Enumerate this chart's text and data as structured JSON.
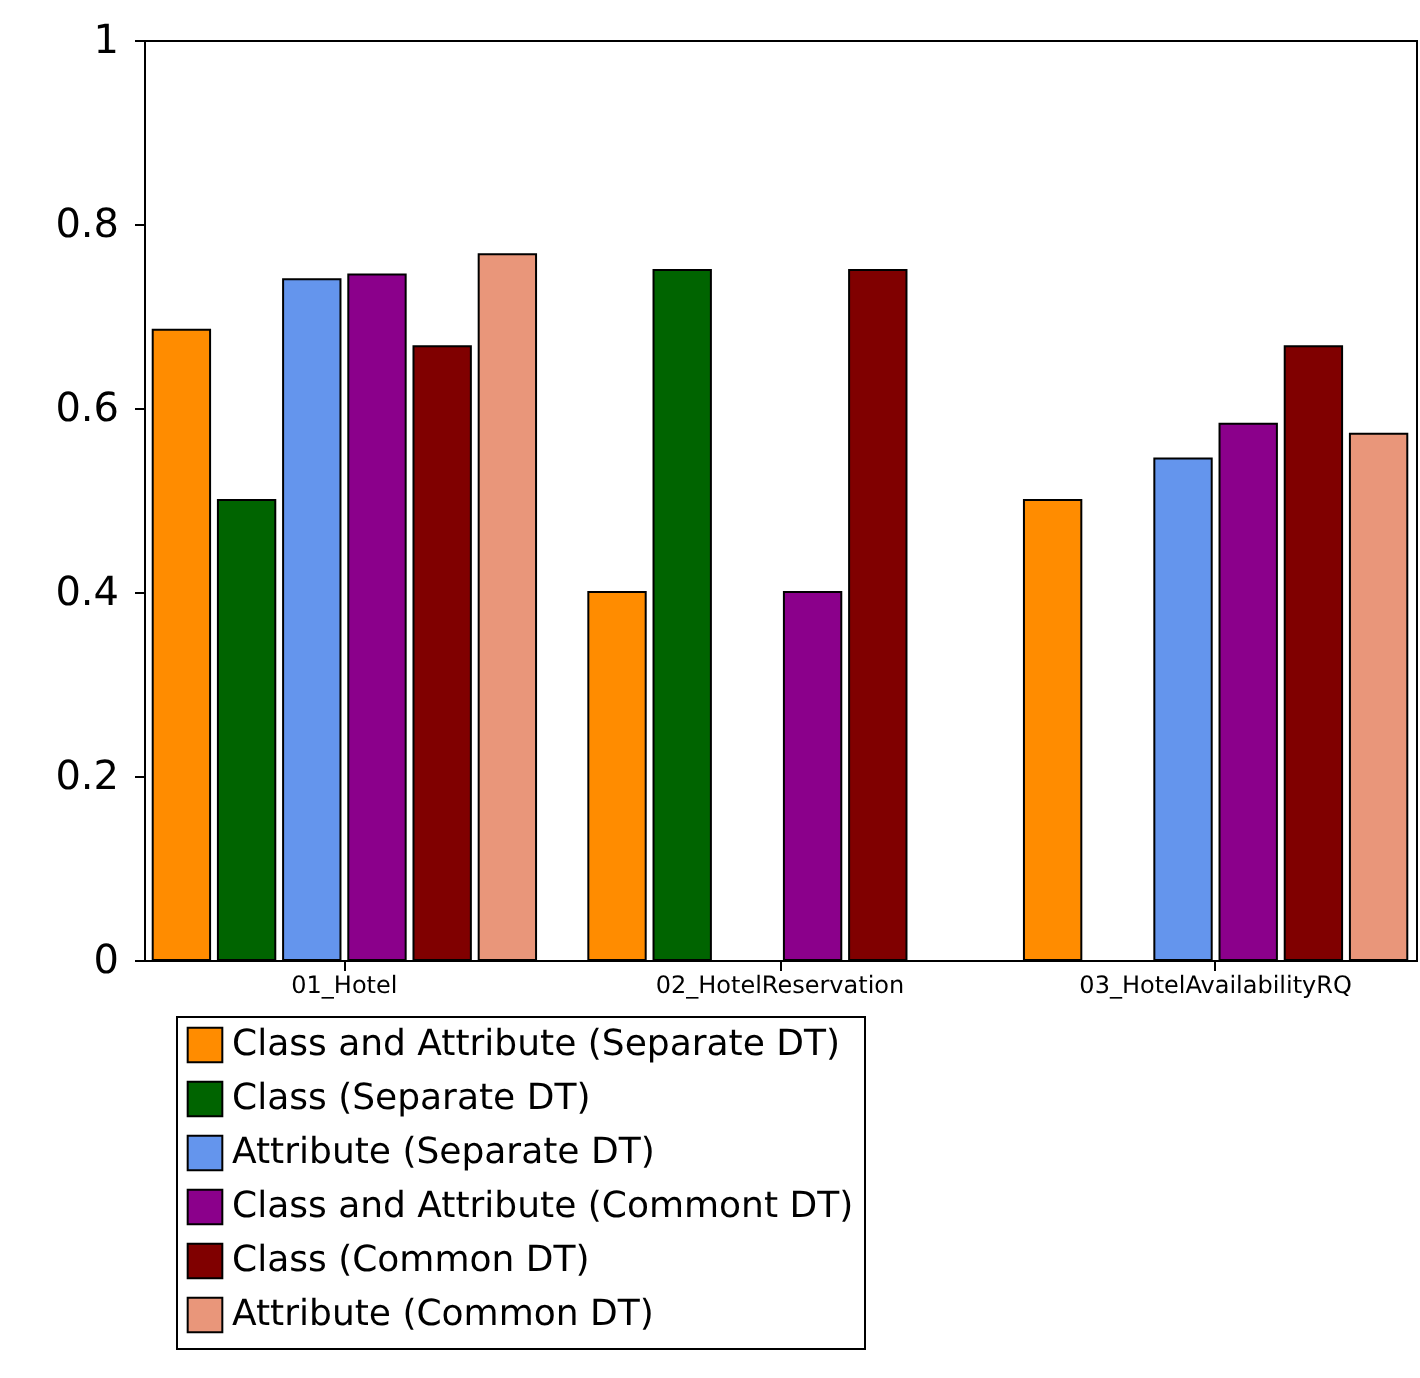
{
  "chart_data": {
    "type": "bar",
    "categories": [
      "01_Hotel",
      "02_HotelReservation",
      "03_HotelAvailabilityRQ"
    ],
    "series": [
      {
        "name": "Class and Attribute (Separate DT)",
        "color": "#ff8c00",
        "values": [
          0.685,
          0.4,
          0.5
        ]
      },
      {
        "name": "Class (Separate DT)",
        "color": "#006400",
        "values": [
          0.5,
          0.75,
          null
        ]
      },
      {
        "name": "Attribute (Separate DT)",
        "color": "#6495ed",
        "values": [
          0.74,
          null,
          0.545
        ]
      },
      {
        "name": "Class and Attribute (Commont DT)",
        "color": "#8b008b",
        "values": [
          0.745,
          0.4,
          0.583
        ]
      },
      {
        "name": "Class (Common DT)",
        "color": "#800000",
        "values": [
          0.667,
          0.75,
          0.667
        ]
      },
      {
        "name": "Attribute (Common DT)",
        "color": "#e9967a",
        "values": [
          0.767,
          null,
          0.572
        ]
      }
    ],
    "ylim": [
      0,
      1
    ],
    "yticks": [
      0,
      0.2,
      0.4,
      0.6,
      0.8,
      1
    ],
    "grid": false,
    "legend": "bottom"
  }
}
